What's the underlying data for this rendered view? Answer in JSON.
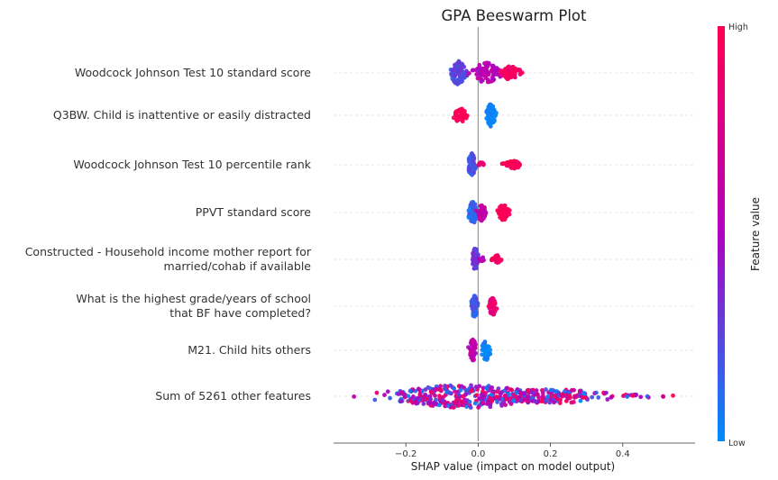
{
  "chart_data": {
    "type": "beeswarm",
    "title": "GPA Beeswarm Plot",
    "xlabel": "SHAP value (impact on model output)",
    "xlim": [
      -0.4,
      0.6
    ],
    "xticks": [
      {
        "value": -0.2,
        "label": "−0.2"
      },
      {
        "value": 0.0,
        "label": "0.0"
      },
      {
        "value": 0.2,
        "label": "0.2"
      },
      {
        "value": 0.4,
        "label": "0.4"
      }
    ],
    "colorbar": {
      "label": "Feature value",
      "high_label": "High",
      "low_label": "Low",
      "high_color": "#ff0051",
      "mid_color": "#b000c0",
      "low_color": "#008bfb"
    },
    "features": [
      {
        "label_lines": [
          "Woodcock Johnson Test 10 standard score"
        ],
        "clusters": [
          {
            "center": -0.055,
            "spread": 0.012,
            "count": 90,
            "value": 0.25,
            "height": 1.0
          },
          {
            "center": 0.022,
            "spread": 0.018,
            "count": 70,
            "value": 0.55,
            "height": 0.9
          },
          {
            "center": 0.09,
            "spread": 0.014,
            "count": 60,
            "value": 0.95,
            "height": 0.6
          }
        ]
      },
      {
        "label_lines": [
          "Q3BW. Child is inattentive or easily distracted"
        ],
        "clusters": [
          {
            "center": -0.05,
            "spread": 0.01,
            "count": 50,
            "value": 1.0,
            "height": 0.6
          },
          {
            "center": 0.035,
            "spread": 0.006,
            "count": 80,
            "value": 0.0,
            "height": 1.0
          }
        ]
      },
      {
        "label_lines": [
          "Woodcock Johnson Test 10 percentile rank"
        ],
        "clusters": [
          {
            "center": -0.018,
            "spread": 0.006,
            "count": 60,
            "value": 0.2,
            "height": 1.0
          },
          {
            "center": 0.008,
            "spread": 0.006,
            "count": 12,
            "value": 0.85,
            "height": 0.2
          },
          {
            "center": 0.098,
            "spread": 0.012,
            "count": 55,
            "value": 1.0,
            "height": 0.35
          }
        ]
      },
      {
        "label_lines": [
          "PPVT standard score"
        ],
        "clusters": [
          {
            "center": -0.015,
            "spread": 0.006,
            "count": 70,
            "value": 0.15,
            "height": 1.0
          },
          {
            "center": 0.01,
            "spread": 0.006,
            "count": 40,
            "value": 0.6,
            "height": 0.7
          },
          {
            "center": 0.07,
            "spread": 0.008,
            "count": 50,
            "value": 1.0,
            "height": 0.7
          }
        ]
      },
      {
        "label_lines": [
          "Constructed - Household income mother report for",
          "married/cohab if available"
        ],
        "clusters": [
          {
            "center": -0.008,
            "spread": 0.004,
            "count": 60,
            "value": 0.3,
            "height": 1.0
          },
          {
            "center": 0.012,
            "spread": 0.004,
            "count": 10,
            "value": 0.55,
            "height": 0.2
          },
          {
            "center": 0.05,
            "spread": 0.006,
            "count": 30,
            "value": 0.92,
            "height": 0.4
          }
        ]
      },
      {
        "label_lines": [
          "What is the highest grade/years of school",
          "that BF have completed?"
        ],
        "clusters": [
          {
            "center": -0.01,
            "spread": 0.005,
            "count": 65,
            "value": 0.15,
            "height": 1.0
          },
          {
            "center": 0.04,
            "spread": 0.005,
            "count": 40,
            "value": 0.85,
            "height": 0.8
          }
        ]
      },
      {
        "label_lines": [
          "M21. Child hits others"
        ],
        "clusters": [
          {
            "center": -0.015,
            "spread": 0.005,
            "count": 45,
            "value": 0.55,
            "height": 1.0
          },
          {
            "center": 0.022,
            "spread": 0.006,
            "count": 45,
            "value": 0.0,
            "height": 0.85
          }
        ]
      },
      {
        "label_lines": [
          "Sum of 5261 other features"
        ],
        "clusters": [
          {
            "center": -0.03,
            "spread": 0.11,
            "count": 320,
            "value": "mixed",
            "height": 1.0
          },
          {
            "center": 0.2,
            "spread": 0.09,
            "count": 130,
            "value": "mixed",
            "height": 0.6
          },
          {
            "center": 0.45,
            "spread": 0.04,
            "count": 12,
            "value": "mixed",
            "height": 0.15
          }
        ]
      }
    ]
  }
}
